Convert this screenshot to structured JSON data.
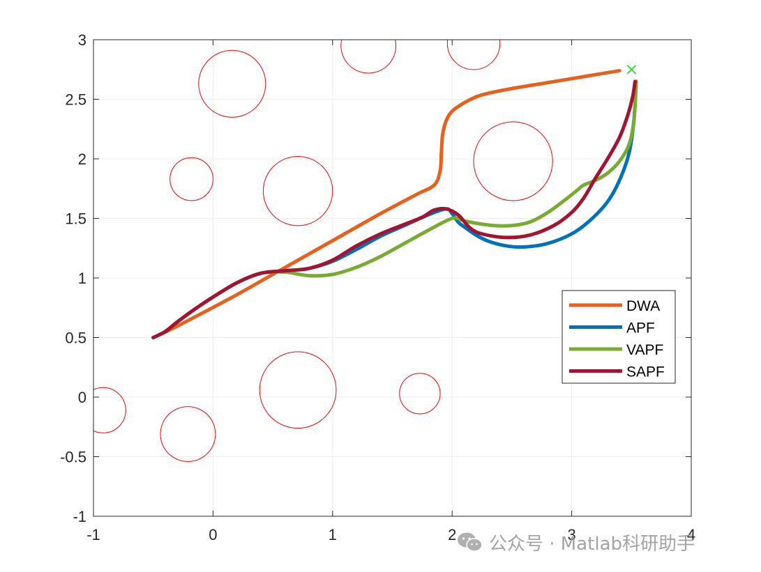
{
  "chart_data": {
    "type": "line",
    "title": "",
    "xlabel": "",
    "ylabel": "",
    "xlim": [
      -1,
      4
    ],
    "ylim": [
      -1,
      3
    ],
    "xticks": [
      -1,
      0,
      1,
      2,
      3,
      4
    ],
    "yticks": [
      -1,
      -0.5,
      0,
      0.5,
      1,
      1.5,
      2,
      2.5,
      3
    ],
    "xtick_labels": [
      "-1",
      "0",
      "1",
      "2",
      "3",
      "4"
    ],
    "ytick_labels": [
      "-1",
      "-0.5",
      "0",
      "0.5",
      "1",
      "1.5",
      "2",
      "2.5",
      "3"
    ],
    "grid": true,
    "legend_position": "right",
    "obstacles": [
      {
        "x": 0.16,
        "y": 2.63,
        "r": 0.28
      },
      {
        "x": -0.18,
        "y": 1.83,
        "r": 0.18
      },
      {
        "x": 0.71,
        "y": 1.73,
        "r": 0.29
      },
      {
        "x": 1.3,
        "y": 2.95,
        "r": 0.23
      },
      {
        "x": 2.18,
        "y": 2.97,
        "r": 0.22
      },
      {
        "x": 2.51,
        "y": 1.98,
        "r": 0.33
      },
      {
        "x": 0.71,
        "y": 0.06,
        "r": 0.32
      },
      {
        "x": 1.73,
        "y": 0.03,
        "r": 0.17
      },
      {
        "x": -0.92,
        "y": -0.11,
        "r": 0.19
      },
      {
        "x": -0.21,
        "y": -0.31,
        "r": 0.23
      }
    ],
    "goal": {
      "x": 3.5,
      "y": 2.75,
      "marker": "x",
      "color": "#22dd22"
    },
    "series": [
      {
        "name": "DWA",
        "color": "#E8601C",
        "x": [
          -0.5,
          -0.35,
          -0.1,
          0.2,
          0.5,
          0.8,
          1.1,
          1.4,
          1.7,
          1.85,
          1.9,
          1.91,
          1.92,
          1.95,
          2.0,
          2.1,
          2.2,
          2.3,
          2.5,
          2.8,
          3.1,
          3.4
        ],
        "y": [
          0.5,
          0.57,
          0.7,
          0.86,
          1.03,
          1.2,
          1.37,
          1.54,
          1.7,
          1.78,
          1.9,
          2.05,
          2.2,
          2.32,
          2.4,
          2.47,
          2.52,
          2.55,
          2.59,
          2.64,
          2.69,
          2.74
        ]
      },
      {
        "name": "APF",
        "color": "#0072BD",
        "x": [
          -0.5,
          -0.4,
          -0.3,
          -0.15,
          0.0,
          0.2,
          0.4,
          0.6,
          0.8,
          1.0,
          1.2,
          1.4,
          1.6,
          1.8,
          1.95,
          2.0,
          2.05,
          2.1,
          2.2,
          2.3,
          2.45,
          2.6,
          2.8,
          3.0,
          3.15,
          3.3,
          3.4,
          3.48,
          3.52,
          3.54
        ],
        "y": [
          0.5,
          0.55,
          0.63,
          0.74,
          0.84,
          0.96,
          1.04,
          1.06,
          1.08,
          1.14,
          1.24,
          1.35,
          1.44,
          1.53,
          1.58,
          1.54,
          1.47,
          1.43,
          1.36,
          1.31,
          1.27,
          1.26,
          1.29,
          1.37,
          1.48,
          1.64,
          1.82,
          2.05,
          2.32,
          2.65
        ]
      },
      {
        "name": "VAPF",
        "color": "#77AC30",
        "x": [
          -0.5,
          -0.4,
          -0.3,
          -0.15,
          0.0,
          0.2,
          0.4,
          0.6,
          0.8,
          1.0,
          1.2,
          1.4,
          1.6,
          1.8,
          2.0,
          2.1,
          2.2,
          2.35,
          2.5,
          2.65,
          2.8,
          2.95,
          3.05,
          3.1,
          3.2,
          3.3,
          3.4,
          3.48,
          3.52,
          3.54
        ],
        "y": [
          0.5,
          0.55,
          0.63,
          0.74,
          0.84,
          0.96,
          1.04,
          1.05,
          1.02,
          1.03,
          1.09,
          1.18,
          1.29,
          1.4,
          1.5,
          1.48,
          1.46,
          1.44,
          1.44,
          1.47,
          1.55,
          1.66,
          1.74,
          1.78,
          1.82,
          1.88,
          1.98,
          2.12,
          2.32,
          2.65
        ]
      },
      {
        "name": "SAPF",
        "color": "#A2142F",
        "x": [
          -0.5,
          -0.4,
          -0.3,
          -0.15,
          0.0,
          0.2,
          0.4,
          0.6,
          0.8,
          1.0,
          1.2,
          1.4,
          1.6,
          1.75,
          1.85,
          1.95,
          2.05,
          2.15,
          2.25,
          2.45,
          2.65,
          2.85,
          3.0,
          3.1,
          3.2,
          3.3,
          3.4,
          3.47,
          3.51,
          3.53
        ],
        "y": [
          0.5,
          0.55,
          0.63,
          0.74,
          0.84,
          0.96,
          1.04,
          1.06,
          1.08,
          1.15,
          1.27,
          1.37,
          1.45,
          1.51,
          1.57,
          1.58,
          1.53,
          1.42,
          1.37,
          1.34,
          1.36,
          1.44,
          1.55,
          1.67,
          1.84,
          2.0,
          2.18,
          2.37,
          2.52,
          2.65
        ]
      }
    ]
  },
  "watermark": {
    "text": "公众号 · Matlab科研助手"
  }
}
